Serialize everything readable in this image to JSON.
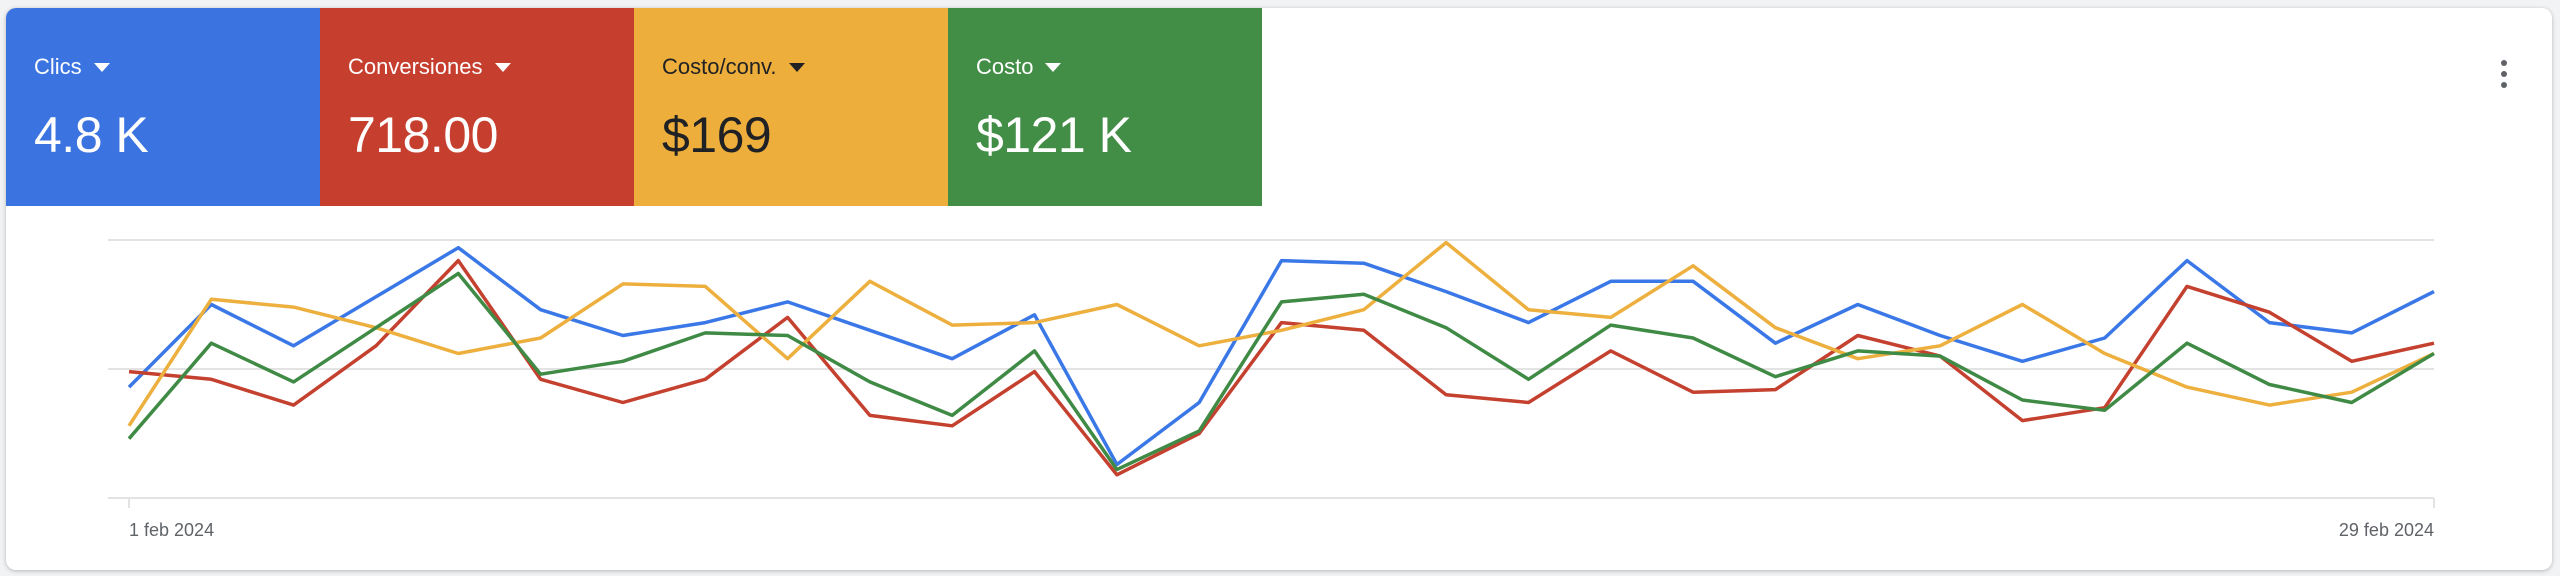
{
  "metrics": [
    {
      "label": "Clics",
      "value": "4.8 K",
      "color": "#3b74e0"
    },
    {
      "label": "Conversiones",
      "value": "718.00",
      "color": "#c63f2e"
    },
    {
      "label": "Costo/conv.",
      "value": "$169",
      "color": "#edae3b"
    },
    {
      "label": "Costo",
      "value": "$121 K",
      "color": "#438e47"
    }
  ],
  "menu_icon": "more-vert-icon",
  "chart_data": {
    "type": "line",
    "x_start": "1 feb 2024",
    "x_end": "29 feb 2024",
    "x_tick_labels": [
      "1 feb 2024",
      "29 feb 2024"
    ],
    "grid": true,
    "ylim": [
      0,
      100
    ],
    "series": [
      {
        "name": "Clics",
        "color": "#3b78e7",
        "values": [
          43,
          75,
          59,
          78,
          97,
          73,
          63,
          68,
          76,
          65,
          54,
          71,
          13,
          37,
          92,
          91,
          80,
          68,
          84,
          84,
          60,
          75,
          63,
          53,
          62,
          92,
          68,
          64,
          80
        ]
      },
      {
        "name": "Conversiones",
        "color": "#c5412f",
        "values": [
          49,
          46,
          36,
          59,
          92,
          46,
          37,
          46,
          70,
          32,
          28,
          49,
          9,
          25,
          68,
          65,
          40,
          37,
          57,
          41,
          42,
          63,
          55,
          30,
          35,
          82,
          72,
          53,
          60
        ]
      },
      {
        "name": "Costo/conv.",
        "color": "#edb03f",
        "values": [
          28,
          77,
          74,
          66,
          56,
          62,
          83,
          82,
          54,
          84,
          67,
          68,
          75,
          59,
          65,
          73,
          99,
          73,
          70,
          90,
          66,
          54,
          59,
          75,
          56,
          43,
          36,
          41,
          56
        ]
      },
      {
        "name": "Costo",
        "color": "#3f8a45",
        "values": [
          23,
          60,
          45,
          66,
          87,
          48,
          53,
          64,
          63,
          45,
          32,
          57,
          11,
          26,
          76,
          79,
          66,
          46,
          67,
          62,
          47,
          57,
          55,
          38,
          34,
          60,
          44,
          37,
          56
        ]
      }
    ]
  }
}
